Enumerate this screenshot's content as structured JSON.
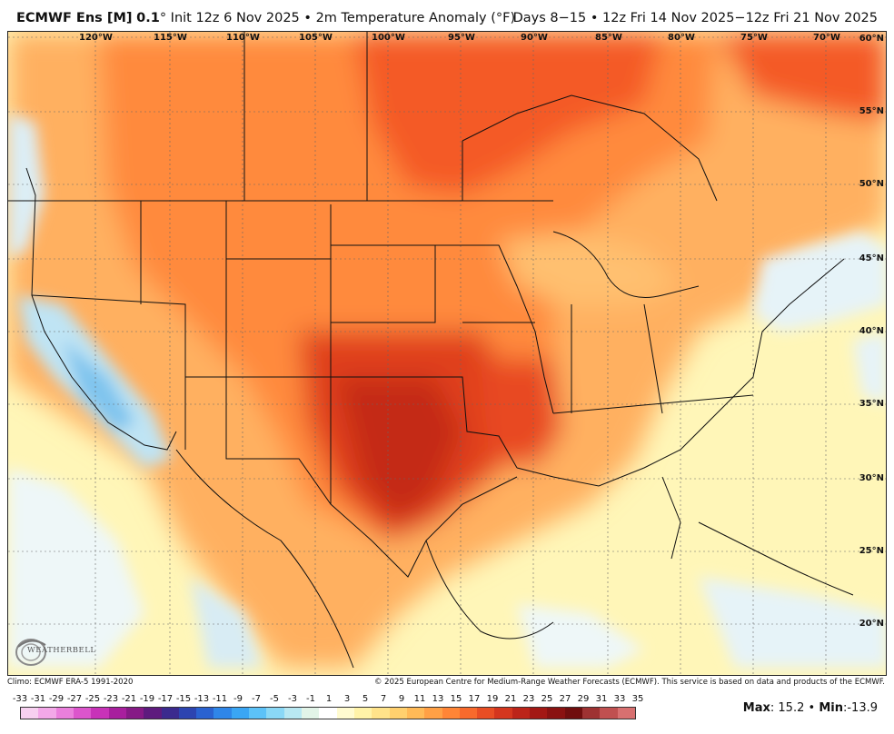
{
  "header": {
    "model": "ECMWF Ens [M]",
    "resolution": "0.1",
    "init": "Init 12z 6 Nov 2025",
    "separator": "•",
    "field": "2m Temperature Anomaly (°F)",
    "period_days": "Days 8−15",
    "period_range": "12z Fri 14 Nov 2025−12z Fri 21 Nov 2025"
  },
  "map": {
    "longitude_labels": [
      "120°W",
      "115°W",
      "110°W",
      "105°W",
      "100°W",
      "95°W",
      "90°W",
      "85°W",
      "80°W",
      "75°W",
      "70°W"
    ],
    "latitude_labels": [
      "60°N",
      "55°N",
      "50°N",
      "45°N",
      "40°N",
      "35°N",
      "30°N",
      "25°N",
      "20°N"
    ],
    "logo_text": "WEATHERBELL"
  },
  "footer": {
    "climo": "Climo: ECMWF ERA-5 1991-2020",
    "copyright": "© 2025 European Centre for Medium-Range Weather Forecasts (ECMWF). This service is based on data and products of the ECMWF."
  },
  "legend": {
    "ticks": [
      "-33",
      "-31",
      "-29",
      "-27",
      "-25",
      "-23",
      "-21",
      "-19",
      "-17",
      "-15",
      "-13",
      "-11",
      "-9",
      "-7",
      "-5",
      "-3",
      "-1",
      "1",
      "3",
      "5",
      "7",
      "9",
      "11",
      "13",
      "15",
      "17",
      "19",
      "21",
      "23",
      "25",
      "27",
      "29",
      "31",
      "33",
      "35"
    ],
    "colors": [
      "#f7d0f0",
      "#f3a8e8",
      "#ea7fdc",
      "#dc55cc",
      "#c832b8",
      "#a81f9e",
      "#861a86",
      "#5e1b7e",
      "#3b2a8e",
      "#2c44b0",
      "#2a62d0",
      "#2f86e8",
      "#3aa6f4",
      "#5cc2f8",
      "#8ad8f6",
      "#b8e8f2",
      "#e2f4e8",
      "#ffffff",
      "#fffbd0",
      "#fff3a8",
      "#ffe38a",
      "#ffd06e",
      "#ffba57",
      "#ffa045",
      "#ff8536",
      "#f86a2c",
      "#e84e24",
      "#d4361e",
      "#bc2419",
      "#a31814",
      "#8a1211",
      "#700e0e",
      "#9e3232",
      "#c05050",
      "#d87070"
    ],
    "max_label": "Max",
    "max_value": "15.2",
    "min_label": "Min",
    "min_value": "-13.9",
    "bullet": "•"
  }
}
